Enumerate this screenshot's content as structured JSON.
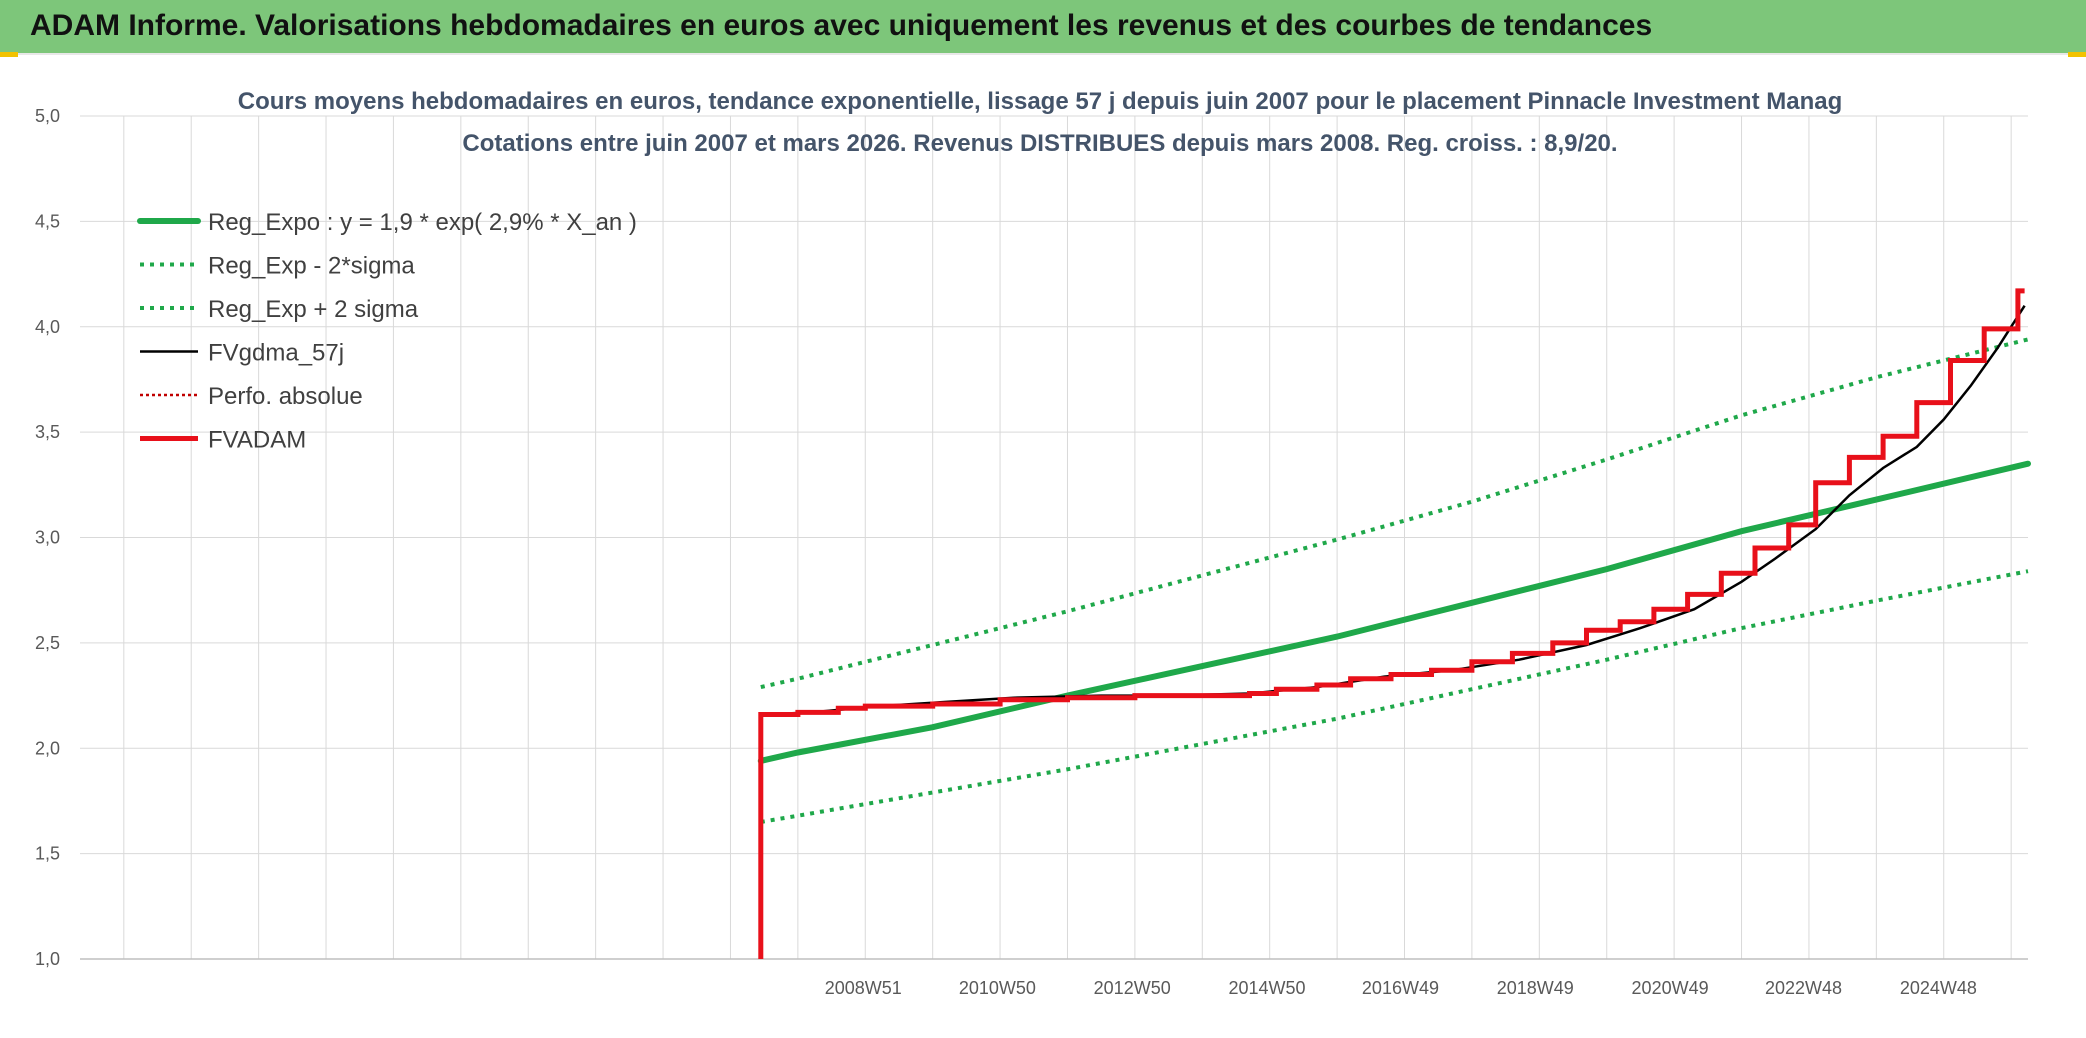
{
  "header": {
    "title": "ADAM Informe. Valorisations hebdomadaires en euros avec uniquement les revenus et des courbes de tendances"
  },
  "colors": {
    "header_bg": "#7dc67a",
    "trend_green": "#1fa84a",
    "fvadam_red": "#e8101a",
    "fvgdma_black": "#000000",
    "grid": "#d9d9d9",
    "title_text": "#44546a"
  },
  "chart_data": {
    "type": "line",
    "title": "Cours moyens hebdomadaires en euros, tendance exponentielle, lissage 57 j depuis juin 2007 pour le placement Pinnacle Investment Manag",
    "subtitle": "Cotations entre juin 2007 et mars 2026. Revenus DISTRIBUES depuis mars 2008. Reg. croiss. : 8,9/20.",
    "xlabel": "",
    "ylabel": "",
    "ylim": [
      1.0,
      5.0
    ],
    "yticks": [
      "1,0",
      "1,5",
      "2,0",
      "2,5",
      "3,0",
      "3,5",
      "4,0",
      "4,5",
      "5,0"
    ],
    "xlim": [
      1997.35,
      2026.25
    ],
    "xticks": [
      {
        "label": "2008W51",
        "x": 2008.97
      },
      {
        "label": "2010W50",
        "x": 2010.96
      },
      {
        "label": "2012W50",
        "x": 2012.96
      },
      {
        "label": "2014W50",
        "x": 2014.96
      },
      {
        "label": "2016W49",
        "x": 2016.94
      },
      {
        "label": "2018W49",
        "x": 2018.94
      },
      {
        "label": "2020W49",
        "x": 2020.94
      },
      {
        "label": "2022W48",
        "x": 2022.92
      },
      {
        "label": "2024W48",
        "x": 2024.92
      }
    ],
    "grid": true,
    "legend_position": "top-left",
    "series": [
      {
        "name": "Reg_Expo : y = 1,9 * exp( 2,9% *  X_an )",
        "style": "solid-thick",
        "color": "#1fa84a",
        "x": [
          2007.45,
          2008,
          2010,
          2012,
          2014,
          2016,
          2018,
          2020,
          2022,
          2024,
          2026.25
        ],
        "y": [
          1.94,
          1.98,
          2.1,
          2.25,
          2.39,
          2.53,
          2.69,
          2.85,
          3.03,
          3.18,
          3.35
        ]
      },
      {
        "name": "Reg_Exp - 2*sigma",
        "style": "dotted",
        "color": "#1fa84a",
        "x": [
          2007.45,
          2008,
          2010,
          2012,
          2014,
          2016,
          2018,
          2020,
          2022,
          2024,
          2026.25
        ],
        "y": [
          1.65,
          1.68,
          1.79,
          1.9,
          2.02,
          2.14,
          2.28,
          2.42,
          2.57,
          2.7,
          2.84
        ]
      },
      {
        "name": "Reg_Exp + 2 sigma",
        "style": "dotted",
        "color": "#1fa84a",
        "x": [
          2007.45,
          2008,
          2010,
          2012,
          2014,
          2016,
          2018,
          2020,
          2022,
          2024,
          2026.25
        ],
        "y": [
          2.29,
          2.33,
          2.49,
          2.65,
          2.82,
          2.99,
          3.17,
          3.37,
          3.58,
          3.76,
          3.94
        ]
      },
      {
        "name": "FVgdma_57j",
        "style": "solid-thin",
        "color": "#000000",
        "x": [
          2007.5,
          2008.2,
          2009.2,
          2010.2,
          2011.2,
          2012.5,
          2013.5,
          2014.7,
          2015.7,
          2016.7,
          2017.7,
          2018.7,
          2019.7,
          2020.5,
          2021.3,
          2022.0,
          2022.5,
          2023.1,
          2023.6,
          2024.1,
          2024.6,
          2025.0,
          2025.4,
          2025.8,
          2026.2
        ],
        "y": [
          2.16,
          2.17,
          2.2,
          2.22,
          2.24,
          2.25,
          2.25,
          2.26,
          2.29,
          2.34,
          2.37,
          2.42,
          2.49,
          2.57,
          2.66,
          2.79,
          2.9,
          3.04,
          3.2,
          3.33,
          3.43,
          3.56,
          3.72,
          3.9,
          4.1
        ]
      },
      {
        "name": "Perfo. absolue",
        "style": "dotted-thin",
        "color": "#c00000",
        "x": [],
        "y": []
      },
      {
        "name": "FVADAM",
        "style": "step-thick",
        "color": "#e8101a",
        "x": [
          2007.45,
          2007.45,
          2008.0,
          2008.6,
          2009.0,
          2010.0,
          2011.0,
          2012.0,
          2013.0,
          2014.0,
          2014.7,
          2015.1,
          2015.7,
          2016.2,
          2016.8,
          2017.4,
          2018.0,
          2018.6,
          2019.2,
          2019.7,
          2020.2,
          2020.7,
          2021.2,
          2021.7,
          2022.2,
          2022.7,
          2023.1,
          2023.6,
          2024.1,
          2024.6,
          2025.1,
          2025.6,
          2026.1,
          2026.2
        ],
        "y": [
          1.0,
          2.16,
          2.17,
          2.19,
          2.2,
          2.21,
          2.23,
          2.24,
          2.25,
          2.25,
          2.26,
          2.28,
          2.3,
          2.33,
          2.35,
          2.37,
          2.41,
          2.45,
          2.5,
          2.56,
          2.6,
          2.66,
          2.73,
          2.83,
          2.95,
          3.06,
          3.26,
          3.38,
          3.48,
          3.64,
          3.84,
          3.99,
          4.17,
          4.17
        ]
      }
    ]
  }
}
